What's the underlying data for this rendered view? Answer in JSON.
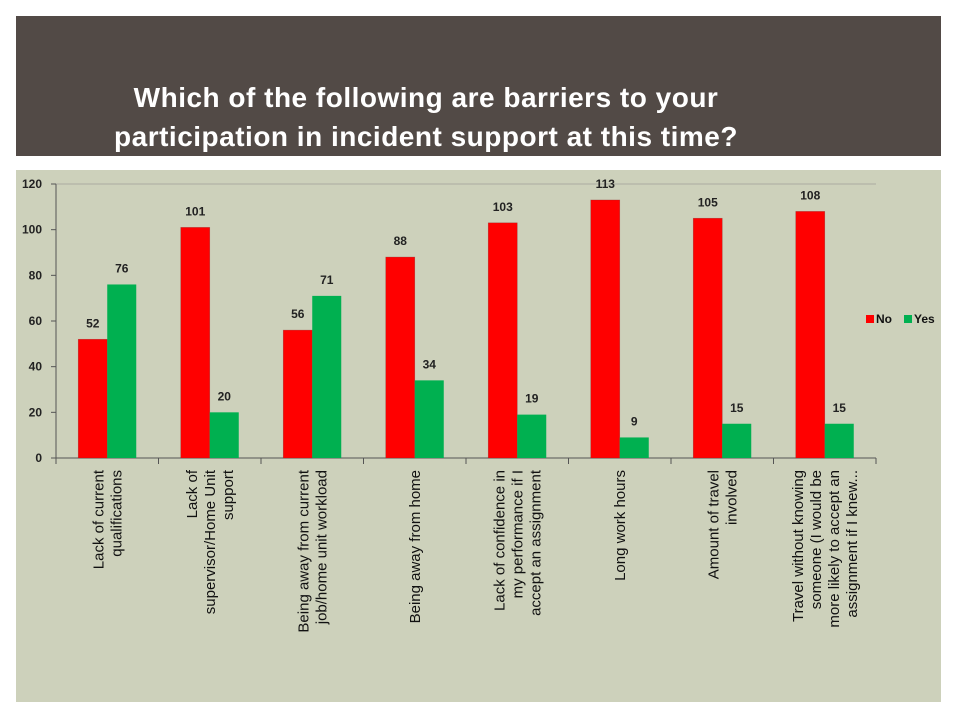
{
  "header": {
    "title_line1": "Which of the following are barriers to your",
    "title_line2": "participation in incident support at this time?"
  },
  "colors": {
    "banner": "#524a46",
    "panel": "#cdd1bb",
    "no": "#ff0000",
    "yes": "#00b050"
  },
  "chart_data": {
    "type": "bar",
    "title": "Which of the following are barriers to your participation in incident support at this time?",
    "categories": [
      [
        "Lack of current",
        "qualifications"
      ],
      [
        "Lack of",
        "supervisor/Home Unit",
        "support"
      ],
      [
        "Being away from current",
        "job/home unit workload"
      ],
      [
        "Being away from home"
      ],
      [
        "Lack of confidence in",
        "my performance if I",
        "accept an assignment"
      ],
      [
        "Long work hours"
      ],
      [
        "Amount of travel",
        "involved"
      ],
      [
        "Travel without knowing",
        "someone (I would be",
        "more likely to accept an",
        "assignment if I knew..."
      ]
    ],
    "series": [
      {
        "name": "No",
        "color": "#ff0000",
        "values": [
          52,
          101,
          56,
          88,
          103,
          113,
          105,
          108
        ]
      },
      {
        "name": "Yes",
        "color": "#00b050",
        "values": [
          76,
          20,
          71,
          34,
          19,
          9,
          15,
          15
        ]
      }
    ],
    "yticks": [
      "0",
      "20",
      "40",
      "60",
      "80",
      "100",
      "120"
    ],
    "ylim": [
      0,
      120
    ],
    "grid": false,
    "legend": "right"
  }
}
